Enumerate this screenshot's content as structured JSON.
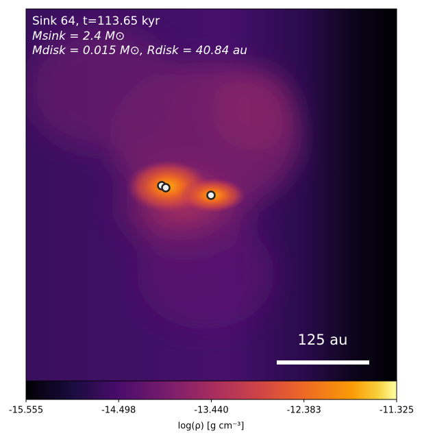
{
  "chart_data": {
    "type": "image",
    "annotations": [
      "Sink 64, t=113.65 kyr",
      "Msink = 2.4 M⊙",
      "Mdisk = 0.015 M⊙, Rdisk = 40.84 au"
    ],
    "scalebar_label": "125 au",
    "colorbar": {
      "label": "log(ρ) [g cm⁻³]",
      "clim": [
        -15.555,
        -11.325
      ],
      "ticks": [
        -15.555,
        -14.498,
        {
          "value": -13.44,
          "label": "-13.440"
        },
        -12.383,
        -11.325
      ],
      "colormap": "inferno"
    }
  }
}
